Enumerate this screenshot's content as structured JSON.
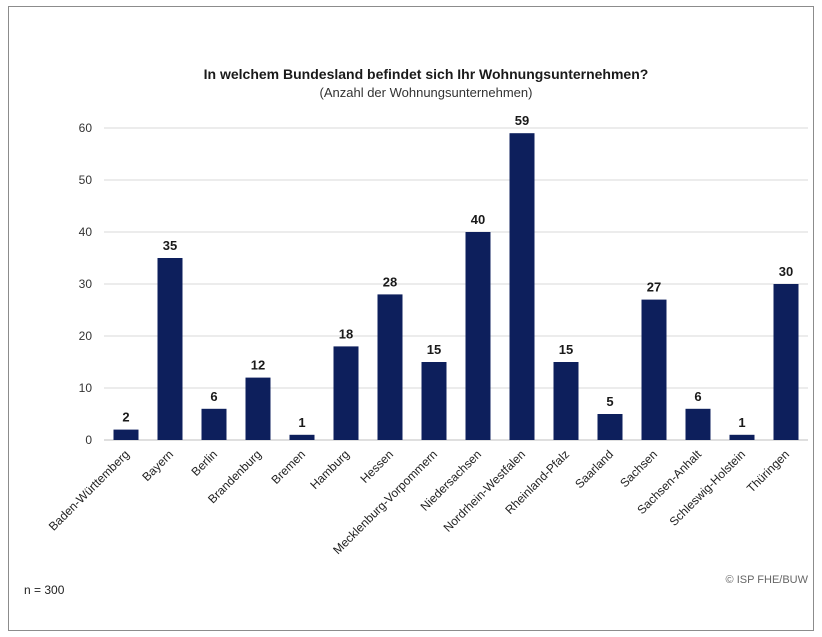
{
  "chart_data": {
    "type": "bar",
    "title": "In welchem Bundesland befindet sich Ihr Wohnungsunternehmen?",
    "subtitle": "(Anzahl der Wohnungsunternehmen)",
    "categories": [
      "Baden-Württemberg",
      "Bayern",
      "Berlin",
      "Brandenburg",
      "Bremen",
      "Hamburg",
      "Hessen",
      "Mecklenburg-Vorpommern",
      "Niedersachsen",
      "Nordrhein-Westfalen",
      "Rheinland-Pfalz",
      "Saarland",
      "Sachsen",
      "Sachsen-Anhalt",
      "Schleswig-Holstein",
      "Thüringen"
    ],
    "values": [
      2,
      35,
      6,
      12,
      1,
      18,
      28,
      15,
      40,
      59,
      15,
      5,
      27,
      6,
      1,
      30
    ],
    "ylim": [
      0,
      60
    ],
    "yticks": [
      0,
      10,
      20,
      30,
      40,
      50,
      60
    ],
    "grid": true,
    "bar_color": "#0d1f5c"
  },
  "footer": {
    "note": "n = 300",
    "copyright": "© ISP FHE/BUW"
  }
}
